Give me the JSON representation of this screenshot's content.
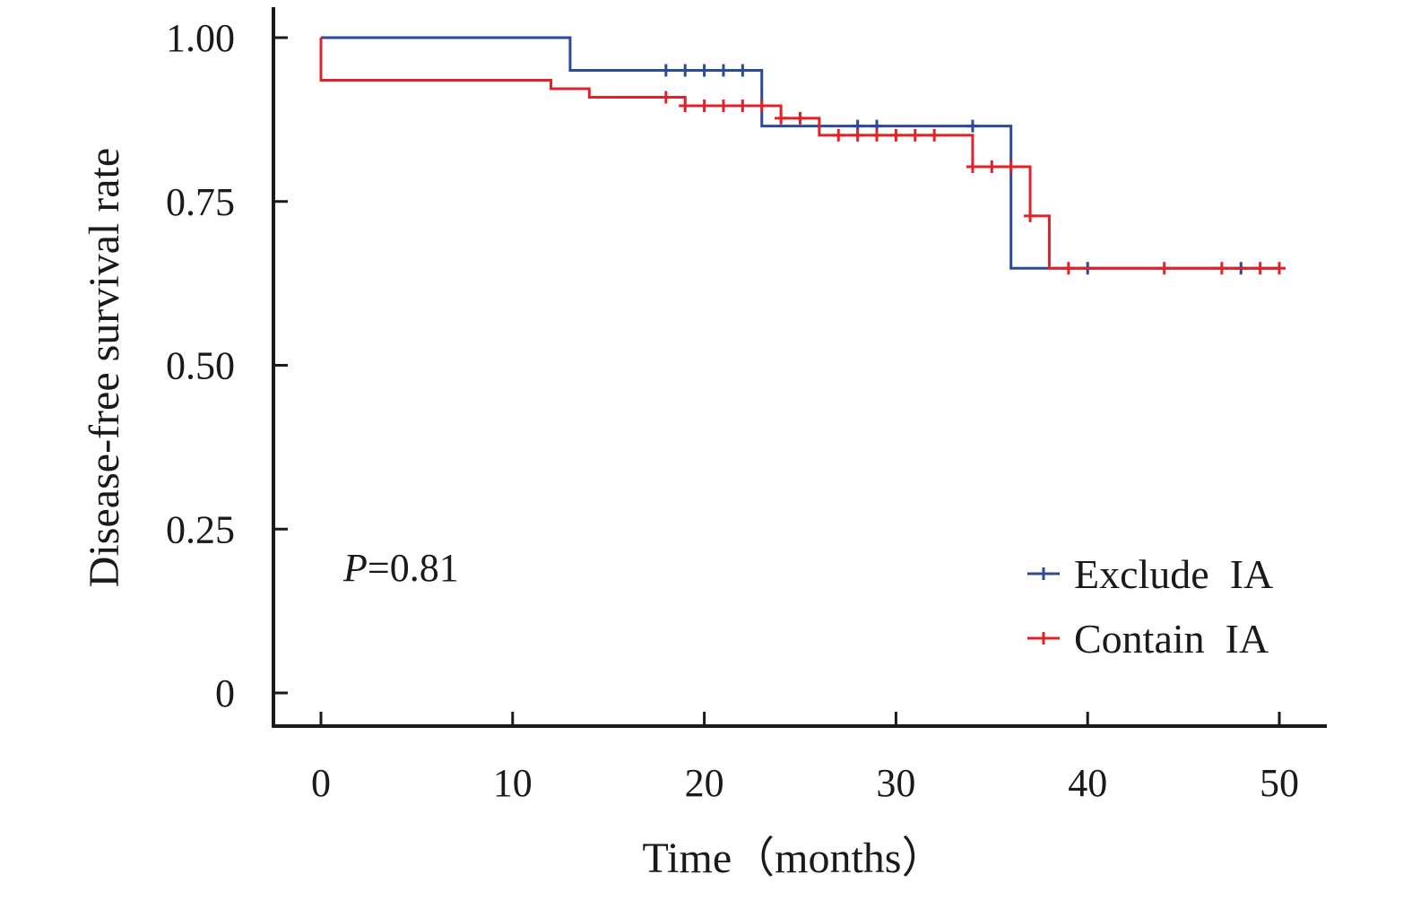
{
  "chart_data": {
    "type": "line",
    "subtype": "kaplan-meier-step",
    "xlabel_main": "Time",
    "xlabel_unit": "（months）",
    "ylabel": "Disease-free survival rate",
    "xlim": [
      0,
      50
    ],
    "ylim": [
      0,
      1
    ],
    "xticks": [
      0,
      10,
      20,
      30,
      40,
      50
    ],
    "xtick_labels": [
      "0",
      "10",
      "20",
      "30",
      "40",
      "50"
    ],
    "yticks": [
      0,
      0.25,
      0.5,
      0.75,
      1.0
    ],
    "ytick_labels": [
      "0",
      "0.25",
      "0.50",
      "0.75",
      "1.00"
    ],
    "grid": false,
    "legend_position": "bottom-right",
    "annotation": {
      "italic": "P",
      "rest": "=0.81"
    },
    "series": [
      {
        "name": "Exclude  IA",
        "color": "#2b4a9b",
        "steps": [
          [
            0,
            1.0
          ],
          [
            13,
            0.95
          ],
          [
            23,
            0.865
          ],
          [
            36,
            0.648
          ],
          [
            50,
            0.648
          ]
        ],
        "censored": [
          [
            18,
            0.95
          ],
          [
            19,
            0.95
          ],
          [
            20,
            0.95
          ],
          [
            21,
            0.95
          ],
          [
            22,
            0.95
          ],
          [
            28,
            0.865
          ],
          [
            29,
            0.865
          ],
          [
            34,
            0.865
          ],
          [
            40,
            0.648
          ],
          [
            48,
            0.648
          ]
        ]
      },
      {
        "name": "Contain  IA",
        "color": "#e0232a",
        "steps": [
          [
            0,
            0.935
          ],
          [
            12,
            0.922
          ],
          [
            14,
            0.909
          ],
          [
            19,
            0.896
          ],
          [
            24,
            0.877
          ],
          [
            26,
            0.851
          ],
          [
            34,
            0.803
          ],
          [
            37,
            0.728
          ],
          [
            38,
            0.648
          ],
          [
            50,
            0.648
          ]
        ],
        "censored": [
          [
            18,
            0.909
          ],
          [
            19,
            0.896
          ],
          [
            20,
            0.896
          ],
          [
            21,
            0.896
          ],
          [
            22,
            0.896
          ],
          [
            23,
            0.896
          ],
          [
            24,
            0.877
          ],
          [
            25,
            0.877
          ],
          [
            27,
            0.851
          ],
          [
            28,
            0.851
          ],
          [
            29,
            0.851
          ],
          [
            30,
            0.851
          ],
          [
            31,
            0.851
          ],
          [
            32,
            0.851
          ],
          [
            34,
            0.803
          ],
          [
            35,
            0.803
          ],
          [
            36,
            0.803
          ],
          [
            37,
            0.728
          ],
          [
            39,
            0.648
          ],
          [
            44,
            0.648
          ],
          [
            47,
            0.648
          ],
          [
            49,
            0.648
          ],
          [
            50,
            0.648
          ]
        ]
      }
    ]
  }
}
